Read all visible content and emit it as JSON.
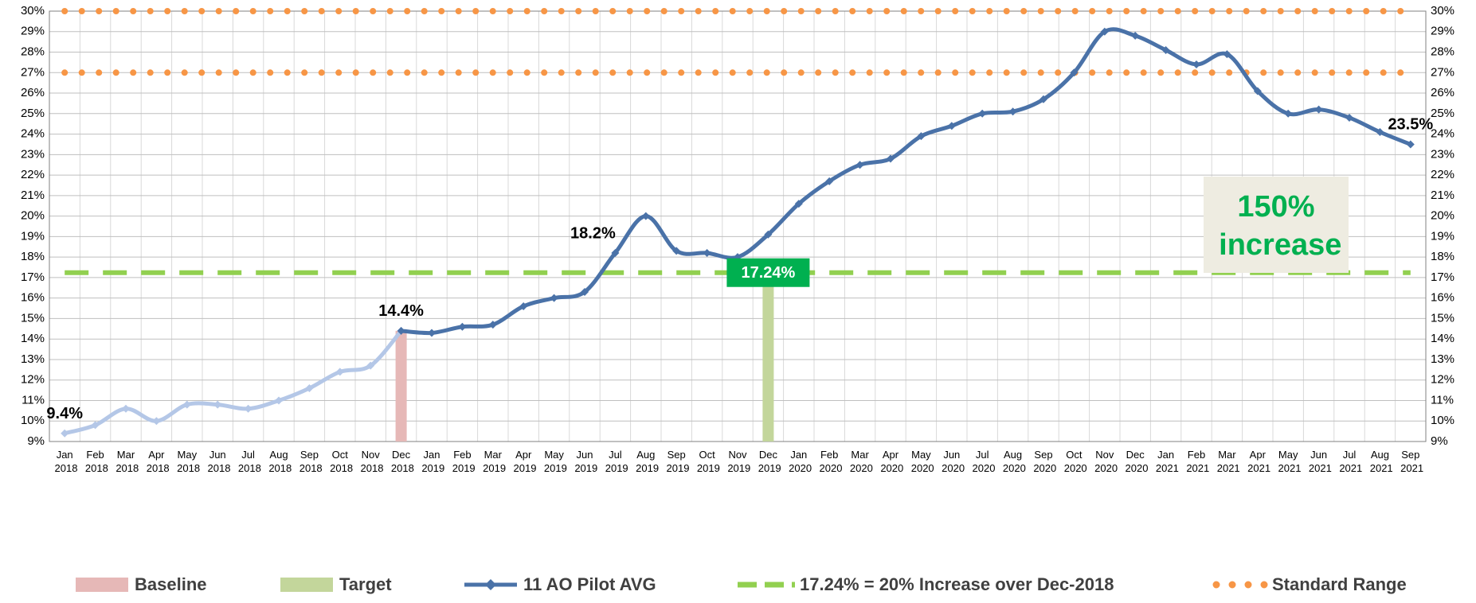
{
  "chart_data": {
    "type": "line",
    "categories": [
      "Jan 2018",
      "Feb 2018",
      "Mar 2018",
      "Apr 2018",
      "May 2018",
      "Jun 2018",
      "Jul 2018",
      "Aug 2018",
      "Sep 2018",
      "Oct 2018",
      "Nov 2018",
      "Dec 2018",
      "Jan 2019",
      "Feb 2019",
      "Mar 2019",
      "Apr 2019",
      "May 2019",
      "Jun 2019",
      "Jul 2019",
      "Aug 2019",
      "Sep 2019",
      "Oct 2019",
      "Nov 2019",
      "Dec 2019",
      "Jan 2020",
      "Feb 2020",
      "Mar 2020",
      "Apr 2020",
      "May 2020",
      "Jun 2020",
      "Jul 2020",
      "Aug 2020",
      "Sep 2020",
      "Oct 2020",
      "Nov 2020",
      "Dec 2020",
      "Jan 2021",
      "Feb 2021",
      "Mar 2021",
      "Apr 2021",
      "May 2021",
      "Jun 2021",
      "Jul 2021",
      "Aug 2021",
      "Sep 2021"
    ],
    "series": [
      {
        "name": "11 AO Pilot AVG",
        "color": "#4a72a8",
        "pre_baseline_color": "#b4c7e7",
        "values": [
          9.4,
          9.8,
          10.6,
          10.0,
          10.8,
          10.8,
          10.6,
          11.0,
          11.6,
          12.4,
          12.7,
          14.4,
          14.3,
          14.6,
          14.7,
          15.6,
          16.0,
          16.3,
          18.2,
          20.0,
          18.3,
          18.2,
          18.0,
          19.1,
          20.6,
          21.7,
          22.5,
          22.8,
          23.9,
          24.4,
          25.0,
          25.1,
          25.7,
          27.0,
          29.0,
          28.8,
          28.1,
          27.4,
          27.9,
          26.1,
          25.0,
          25.2,
          24.8,
          24.1,
          23.5
        ],
        "value_labels": [
          "9.4%",
          null,
          null,
          null,
          null,
          null,
          null,
          null,
          null,
          null,
          null,
          "14.4%",
          null,
          null,
          null,
          null,
          null,
          null,
          "18.2%",
          null,
          null,
          null,
          null,
          null,
          null,
          null,
          null,
          null,
          null,
          null,
          null,
          null,
          null,
          null,
          null,
          null,
          null,
          null,
          null,
          null,
          null,
          null,
          null,
          null,
          "23.5%"
        ]
      }
    ],
    "markers": [
      {
        "name": "Baseline",
        "color": "#e6b8b7",
        "category": "Dec 2018",
        "value": 14.4
      },
      {
        "name": "Target",
        "color": "#c3d69b",
        "category": "Dec 2019",
        "value": 17.24,
        "label": "17.24%",
        "label_color": "#00b050"
      }
    ],
    "reference_lines": [
      {
        "name": "17.24% = 20% Increase over Dec-2018",
        "values": [
          17.24
        ],
        "color": "#92d050",
        "style": "dashed"
      },
      {
        "name": "Standard Range",
        "values": [
          27,
          30
        ],
        "color": "#f79646",
        "style": "dotted"
      }
    ],
    "annotation": "150% increase",
    "annotation_color": "#00b050",
    "ylim": [
      9,
      30
    ],
    "yticks": [
      {
        "value": 9,
        "label": "9%"
      },
      {
        "value": 10,
        "label": "10%"
      },
      {
        "value": 11,
        "label": "11%"
      },
      {
        "value": 12,
        "label": "12%"
      },
      {
        "value": 13,
        "label": "13%"
      },
      {
        "value": 14,
        "label": "14%"
      },
      {
        "value": 15,
        "label": "15%"
      },
      {
        "value": 16,
        "label": "16%"
      },
      {
        "value": 17,
        "label": "17%"
      },
      {
        "value": 18,
        "label": "18%"
      },
      {
        "value": 19,
        "label": "19%"
      },
      {
        "value": 20,
        "label": "20%"
      },
      {
        "value": 21,
        "label": "21%"
      },
      {
        "value": 22,
        "label": "22%"
      },
      {
        "value": 23,
        "label": "23%"
      },
      {
        "value": 24,
        "label": "24%"
      },
      {
        "value": 25,
        "label": "25%"
      },
      {
        "value": 26,
        "label": "26%"
      },
      {
        "value": 27,
        "label": "27%"
      },
      {
        "value": 28,
        "label": "28%"
      },
      {
        "value": 29,
        "label": "29%"
      },
      {
        "value": 30,
        "label": "30%"
      }
    ],
    "grid": true,
    "legend": "bottom"
  }
}
